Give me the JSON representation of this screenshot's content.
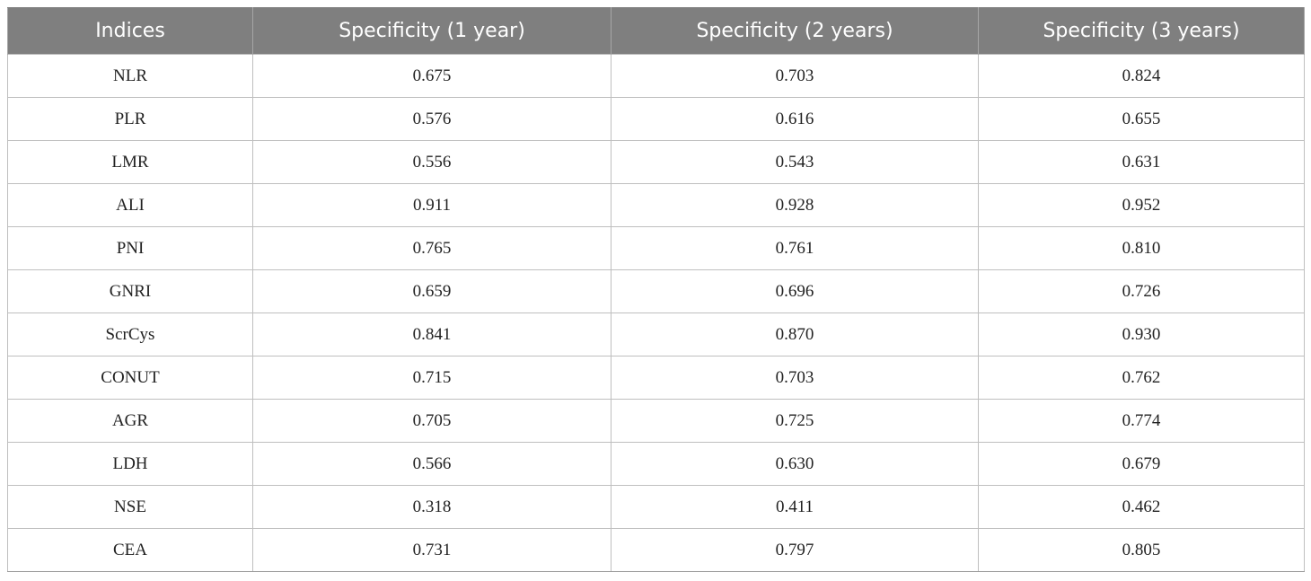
{
  "table": {
    "headers": [
      "Indices",
      "Specificity (1 year)",
      "Specificity (2 years)",
      "Specificity (3 years)"
    ],
    "rows": [
      [
        "NLR",
        "0.675",
        "0.703",
        "0.824"
      ],
      [
        "PLR",
        "0.576",
        "0.616",
        "0.655"
      ],
      [
        "LMR",
        "0.556",
        "0.543",
        "0.631"
      ],
      [
        "ALI",
        "0.911",
        "0.928",
        "0.952"
      ],
      [
        "PNI",
        "0.765",
        "0.761",
        "0.810"
      ],
      [
        "GNRI",
        "0.659",
        "0.696",
        "0.726"
      ],
      [
        "ScrCys",
        "0.841",
        "0.870",
        "0.930"
      ],
      [
        "CONUT",
        "0.715",
        "0.703",
        "0.762"
      ],
      [
        "AGR",
        "0.705",
        "0.725",
        "0.774"
      ],
      [
        "LDH",
        "0.566",
        "0.630",
        "0.679"
      ],
      [
        "NSE",
        "0.318",
        "0.411",
        "0.462"
      ],
      [
        "CEA",
        "0.731",
        "0.797",
        "0.805"
      ]
    ]
  }
}
